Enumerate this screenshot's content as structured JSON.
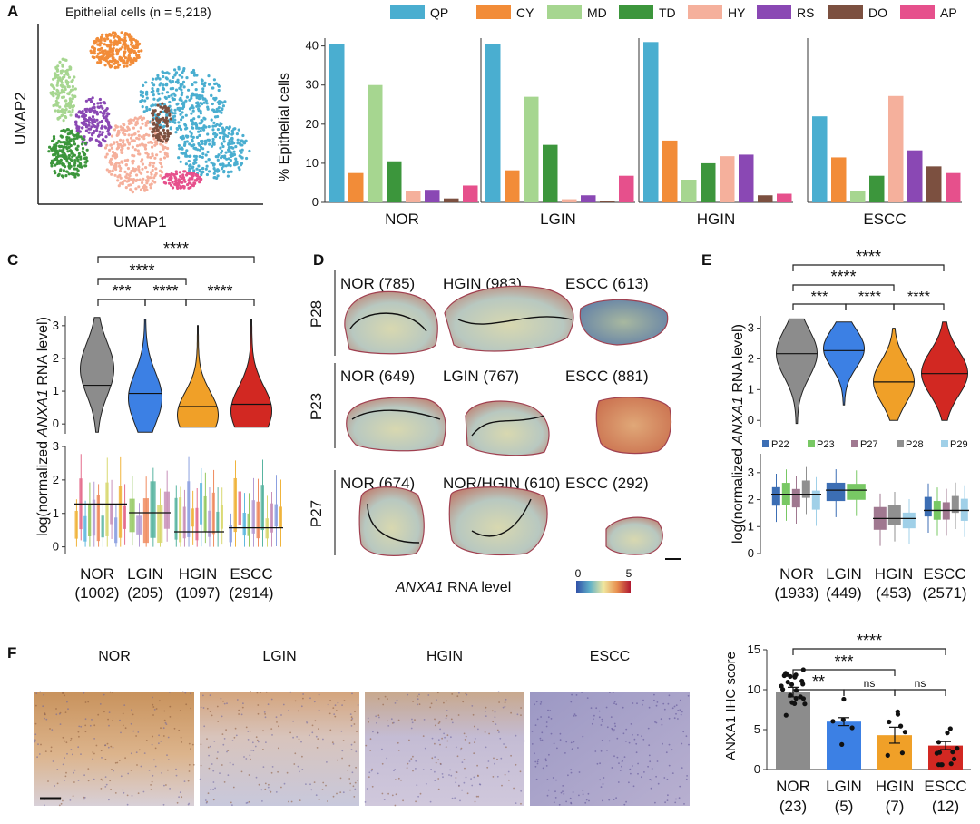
{
  "colors": {
    "QP": "#4aaed0",
    "CY": "#f28c38",
    "MD": "#a6d690",
    "TD": "#3c963c",
    "HY": "#f5b09c",
    "RS": "#8a48b4",
    "DO": "#7c5040",
    "AP": "#e6508c",
    "nor": "#8c8c8c",
    "lgin": "#3c80e4",
    "hgin": "#f0a028",
    "escc": "#d22822",
    "P22": "#3c6eb4",
    "P23": "#78c864",
    "P27": "#a07890",
    "P28": "#909090",
    "P29": "#a0d0e8"
  },
  "panel_a": {
    "letter": "A",
    "umap_title": "Epithelial cells (n = 5,218)",
    "umap_x": "UMAP1",
    "umap_y": "UMAP2",
    "legend": [
      "QP",
      "CY",
      "MD",
      "TD",
      "HY",
      "RS",
      "DO",
      "AP"
    ]
  },
  "panel_c": {
    "letter": "C",
    "ylabel_pre": "log(normalized ",
    "ylabel_gene": "ANXA1",
    "ylabel_post": " RNA level)",
    "sig": [
      "****",
      "****",
      "***",
      "****",
      "****"
    ],
    "groups": [
      {
        "name": "NOR",
        "n": "(1002)"
      },
      {
        "name": "LGIN",
        "n": "(205)"
      },
      {
        "name": "HGIN",
        "n": "(1097)"
      },
      {
        "name": "ESCC",
        "n": "(2914)"
      }
    ]
  },
  "panel_d": {
    "letter": "D",
    "rows": [
      {
        "patient": "P28",
        "labels": [
          "NOR (785)",
          "HGIN (983)",
          "ESCC (613)"
        ]
      },
      {
        "patient": "P23",
        "labels": [
          "NOR (649)",
          "LGIN (767)",
          "ESCC (881)"
        ]
      },
      {
        "patient": "P27",
        "labels": [
          "NOR (674)",
          "NOR/HGIN (610)",
          "ESCC (292)"
        ]
      }
    ],
    "scale_gene": "ANXA1",
    "scale_label": "RNA level",
    "scale_min": "0",
    "scale_max": "5"
  },
  "panel_e": {
    "letter": "E",
    "sig": [
      "****",
      "****",
      "***",
      "****",
      "****"
    ],
    "legend": [
      "P22",
      "P23",
      "P27",
      "P28",
      "P29"
    ],
    "groups": [
      {
        "name": "NOR",
        "n": "(1933)"
      },
      {
        "name": "LGIN",
        "n": "(449)"
      },
      {
        "name": "HGIN",
        "n": "(453)"
      },
      {
        "name": "ESCC",
        "n": "(2571)"
      }
    ]
  },
  "panel_f": {
    "letter": "F",
    "titles": [
      "NOR",
      "LGIN",
      "HGIN",
      "ESCC"
    ],
    "sig": [
      "****",
      "***",
      "**",
      "ns",
      "ns"
    ]
  },
  "chart_data": [
    {
      "type": "bar",
      "ylabel": "% Epithelial cells",
      "ylim": [
        0,
        42
      ],
      "yticks": [
        0,
        10,
        20,
        30,
        40
      ],
      "categories": [
        "QP",
        "CY",
        "MD",
        "TD",
        "HY",
        "RS",
        "DO",
        "AP"
      ],
      "groups": [
        "NOR",
        "LGIN",
        "HGIN",
        "ESCC"
      ],
      "series": [
        {
          "name": "NOR",
          "values": [
            40.5,
            7.5,
            30,
            10.5,
            3,
            3.2,
            1,
            4.3
          ]
        },
        {
          "name": "LGIN",
          "values": [
            40.5,
            8.2,
            27,
            14.7,
            0.8,
            1.8,
            0.3,
            6.8
          ]
        },
        {
          "name": "HGIN",
          "values": [
            41,
            15.8,
            5.8,
            10,
            11.8,
            12.2,
            1.8,
            2.2
          ]
        },
        {
          "name": "ESCC",
          "values": [
            22,
            11.5,
            3,
            6.8,
            27.2,
            13.3,
            9.2,
            7.5
          ]
        }
      ]
    },
    {
      "type": "violin",
      "ylim": [
        -0.3,
        3.3
      ],
      "yticks": [
        0,
        1,
        2,
        3
      ],
      "categories": [
        "NOR",
        "LGIN",
        "HGIN",
        "ESCC"
      ],
      "medians": [
        1.18,
        0.93,
        0.53,
        0.6
      ]
    },
    {
      "type": "box",
      "ylim": [
        -0.2,
        3.0
      ],
      "yticks": [
        0,
        1,
        2,
        3
      ],
      "categories": [
        "NOR",
        "LGIN",
        "HGIN",
        "ESCC"
      ],
      "medians": [
        1.28,
        1.02,
        0.45,
        0.57
      ]
    },
    {
      "type": "violin",
      "ylim": [
        -0.2,
        3.4
      ],
      "yticks": [
        0,
        1,
        2,
        3
      ],
      "categories": [
        "NOR",
        "LGIN",
        "HGIN",
        "ESCC"
      ],
      "medians": [
        2.17,
        2.27,
        1.25,
        1.52
      ]
    },
    {
      "type": "box",
      "ylim": [
        0,
        3.7
      ],
      "yticks": [
        0,
        1,
        2,
        3
      ],
      "categories": [
        "NOR",
        "LGIN",
        "HGIN",
        "ESCC"
      ],
      "medians": [
        2.2,
        2.35,
        1.3,
        1.6
      ],
      "series": [
        "P22",
        "P23",
        "P27",
        "P28",
        "P29"
      ]
    },
    {
      "type": "bar",
      "ylabel": "ANXA1 IHC score",
      "ylim": [
        0,
        15
      ],
      "yticks": [
        0,
        5,
        10,
        15
      ],
      "categories": [
        "NOR",
        "LGIN",
        "HGIN",
        "ESCC"
      ],
      "n": [
        "(23)",
        "(5)",
        "(7)",
        "(12)"
      ],
      "values": [
        9.7,
        6.0,
        4.3,
        3.0
      ],
      "errors": [
        0.6,
        0.5,
        1.0,
        0.5
      ]
    }
  ]
}
